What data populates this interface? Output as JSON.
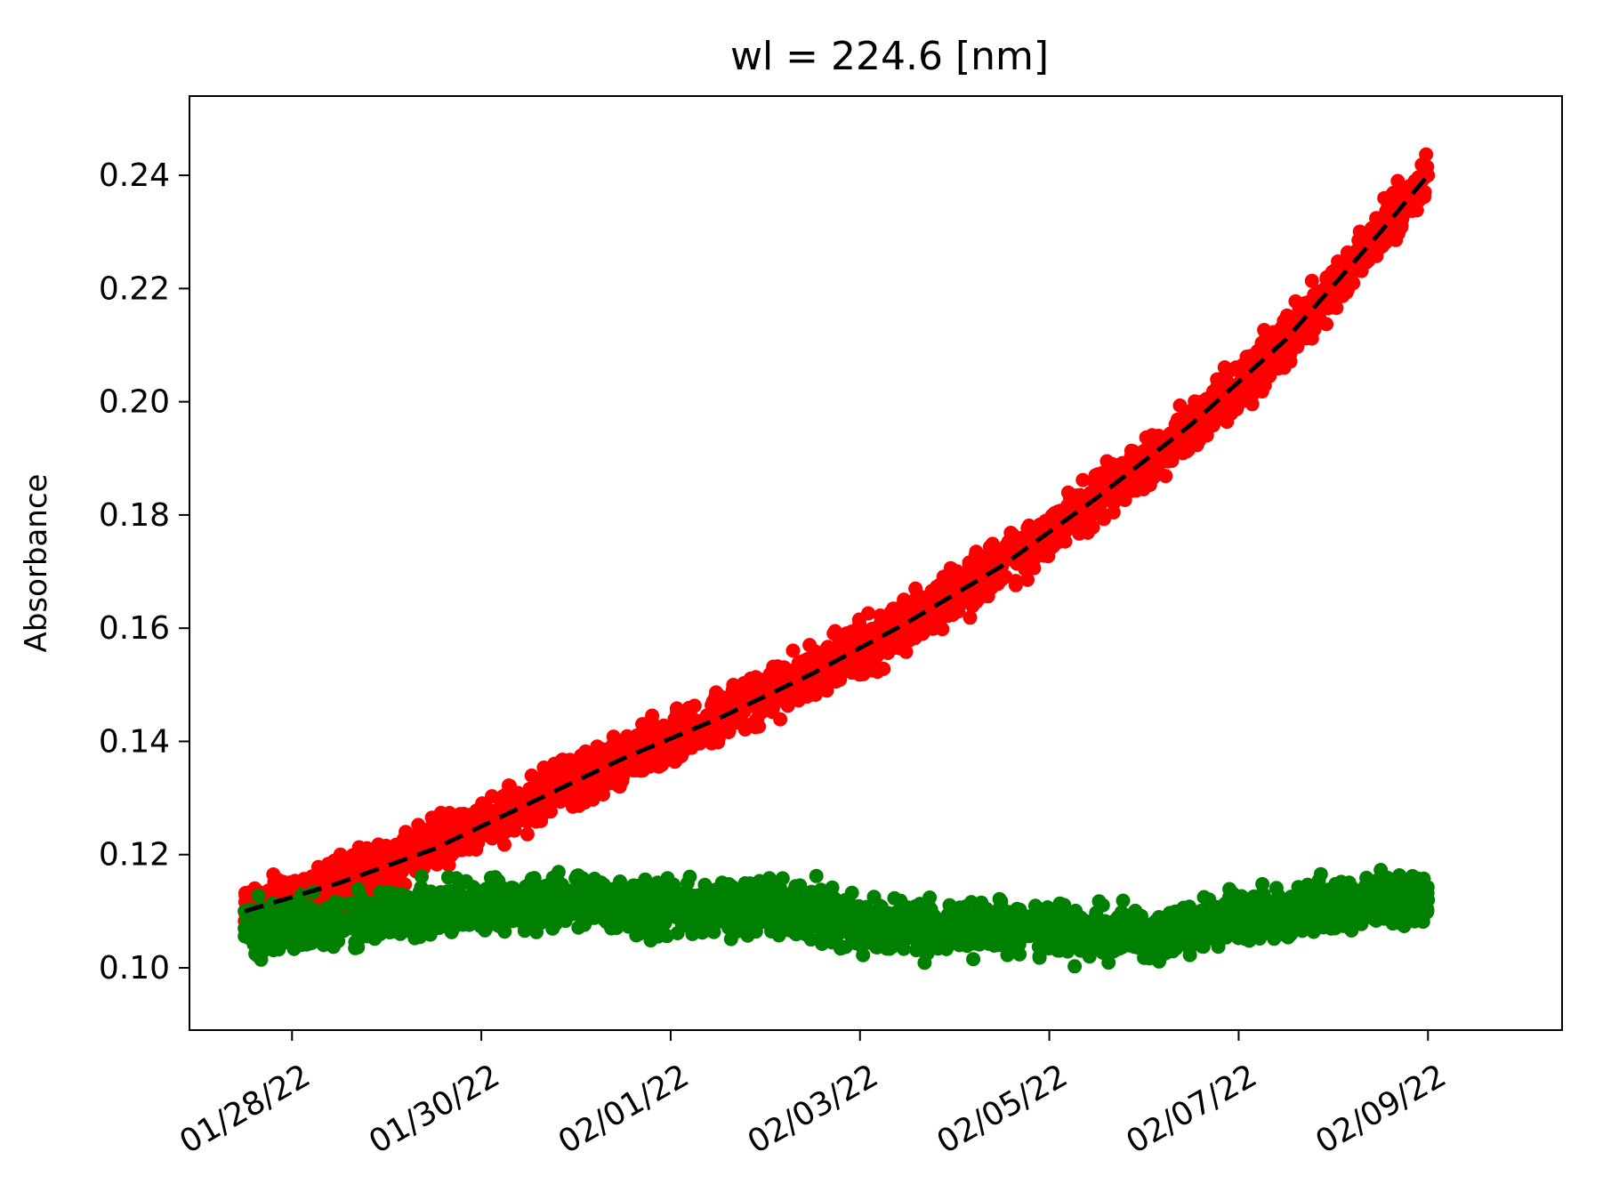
{
  "chart_data": {
    "type": "scatter",
    "title": "wl = 224.6 [nm]",
    "xlabel": "",
    "ylabel": "Absorbance",
    "x_axis": {
      "type": "date",
      "range": [
        "2022-01-26T22:00",
        "2022-02-10T10:00"
      ],
      "ticks": [
        {
          "value": "2022-01-28",
          "label": "01/28/22"
        },
        {
          "value": "2022-01-30",
          "label": "01/30/22"
        },
        {
          "value": "2022-02-01",
          "label": "02/01/22"
        },
        {
          "value": "2022-02-03",
          "label": "02/03/22"
        },
        {
          "value": "2022-02-05",
          "label": "02/05/22"
        },
        {
          "value": "2022-02-07",
          "label": "02/07/22"
        },
        {
          "value": "2022-02-09",
          "label": "02/09/22"
        }
      ]
    },
    "y_axis": {
      "range": [
        0.089,
        0.254
      ],
      "ticks": [
        {
          "value": 0.1,
          "label": "0.10"
        },
        {
          "value": 0.12,
          "label": "0.12"
        },
        {
          "value": 0.14,
          "label": "0.14"
        },
        {
          "value": 0.16,
          "label": "0.16"
        },
        {
          "value": 0.18,
          "label": "0.18"
        },
        {
          "value": 0.2,
          "label": "0.20"
        },
        {
          "value": 0.22,
          "label": "0.22"
        },
        {
          "value": 0.24,
          "label": "0.24"
        }
      ]
    },
    "grid": false,
    "legend": "none",
    "series": [
      {
        "kind": "scatter",
        "color": "#ff0000",
        "x": [
          "2022-01-27T12:00",
          "2022-01-28T00:00",
          "2022-01-28T12:00",
          "2022-01-29T00:00",
          "2022-01-29T12:00",
          "2022-01-30T00:00",
          "2022-01-30T12:00",
          "2022-01-31T00:00",
          "2022-01-31T12:00",
          "2022-02-01T00:00",
          "2022-02-01T12:00",
          "2022-02-02T00:00",
          "2022-02-02T12:00",
          "2022-02-03T00:00",
          "2022-02-03T12:00",
          "2022-02-04T00:00",
          "2022-02-04T12:00",
          "2022-02-05T00:00",
          "2022-02-05T12:00",
          "2022-02-06T00:00",
          "2022-02-06T12:00",
          "2022-02-07T00:00",
          "2022-02-07T12:00",
          "2022-02-08T00:00",
          "2022-02-08T12:00",
          "2022-02-09T00:00"
        ],
        "y": [
          0.11,
          0.112,
          0.115,
          0.118,
          0.122,
          0.125,
          0.129,
          0.133,
          0.137,
          0.14,
          0.144,
          0.148,
          0.152,
          0.156,
          0.161,
          0.166,
          0.171,
          0.177,
          0.183,
          0.189,
          0.196,
          0.203,
          0.211,
          0.22,
          0.23,
          0.24
        ],
        "spread": 0.004
      },
      {
        "kind": "scatter",
        "color": "#008000",
        "x": [
          "2022-01-27T12:00",
          "2022-01-28T00:00",
          "2022-01-28T12:00",
          "2022-01-29T00:00",
          "2022-01-29T12:00",
          "2022-01-30T00:00",
          "2022-01-30T12:00",
          "2022-01-31T00:00",
          "2022-01-31T12:00",
          "2022-02-01T00:00",
          "2022-02-01T12:00",
          "2022-02-02T00:00",
          "2022-02-02T12:00",
          "2022-02-03T00:00",
          "2022-02-03T12:00",
          "2022-02-04T00:00",
          "2022-02-04T12:00",
          "2022-02-05T00:00",
          "2022-02-05T12:00",
          "2022-02-06T00:00",
          "2022-02-06T12:00",
          "2022-02-07T00:00",
          "2022-02-07T12:00",
          "2022-02-08T00:00",
          "2022-02-08T12:00",
          "2022-02-09T00:00"
        ],
        "y": [
          0.107,
          0.107,
          0.108,
          0.109,
          0.11,
          0.111,
          0.111,
          0.112,
          0.111,
          0.111,
          0.111,
          0.111,
          0.11,
          0.108,
          0.107,
          0.107,
          0.107,
          0.107,
          0.106,
          0.106,
          0.107,
          0.109,
          0.11,
          0.111,
          0.112,
          0.112
        ],
        "spread": 0.004
      },
      {
        "kind": "line",
        "style": "dashed",
        "color": "#000000",
        "x": [
          "2022-01-27T12:00",
          "2022-01-28T12:00",
          "2022-01-29T12:00",
          "2022-01-30T12:00",
          "2022-01-31T12:00",
          "2022-02-01T12:00",
          "2022-02-02T12:00",
          "2022-02-03T12:00",
          "2022-02-04T12:00",
          "2022-02-05T12:00",
          "2022-02-06T12:00",
          "2022-02-07T12:00",
          "2022-02-08T12:00",
          "2022-02-09T00:00"
        ],
        "y": [
          0.11,
          0.115,
          0.121,
          0.129,
          0.137,
          0.144,
          0.152,
          0.161,
          0.171,
          0.183,
          0.196,
          0.211,
          0.23,
          0.24
        ]
      }
    ]
  }
}
